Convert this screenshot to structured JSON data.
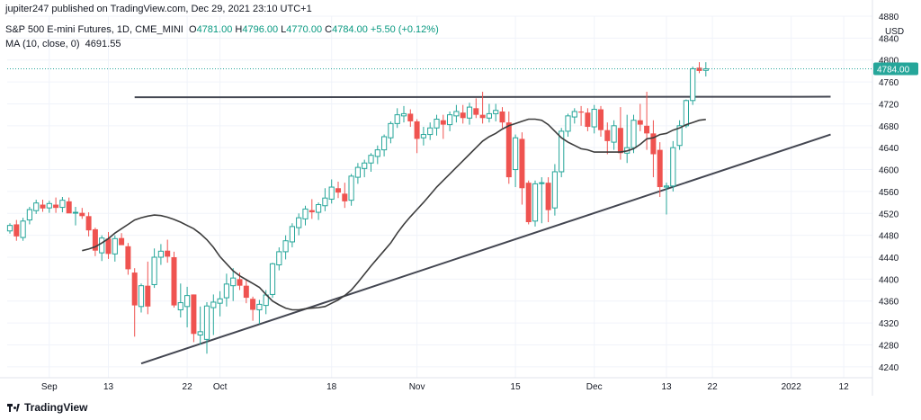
{
  "header": {
    "user_line": "jupiter247 published on TradingView.com, Dec 29, 2021 23:10 UTC+1",
    "symbol": "S&P 500 E-mini Futures, 1D, CME_MINI",
    "o_label": "O",
    "o_value": "4781.00",
    "h_label": "H",
    "h_value": "4796.00",
    "l_label": "L",
    "l_value": "4770.00",
    "c_label": "C",
    "c_value": "4784.00",
    "change": "+5.50 (+0.12%)",
    "ma_label": "MA (10, close, 0)",
    "ma_value": "4691.55"
  },
  "footer": {
    "brand": "TradingView"
  },
  "colors": {
    "up": "#26a69a",
    "down": "#ef5350",
    "ma": "#3d3d3d",
    "trendline": "#434651",
    "price_tag": "#26a69a"
  },
  "chart_data": {
    "type": "candlestick",
    "currency": "USD",
    "ylim": [
      4220,
      4880
    ],
    "y_ticks": [
      4240,
      4280,
      4320,
      4360,
      4400,
      4440,
      4480,
      4520,
      4560,
      4600,
      4640,
      4680,
      4720,
      4760,
      4800,
      4840,
      4880
    ],
    "x_ticks": [
      "Sep",
      "13",
      "22",
      "Oct",
      "18",
      "Nov",
      "15",
      "Dec",
      "13",
      "22",
      "2022",
      "12"
    ],
    "last_price": "4784.00",
    "ma_period": 10,
    "candles": [
      {
        "o": 4488,
        "h": 4502,
        "l": 4483,
        "c": 4498
      },
      {
        "o": 4500,
        "h": 4508,
        "l": 4470,
        "c": 4478
      },
      {
        "o": 4476,
        "h": 4512,
        "l": 4470,
        "c": 4506
      },
      {
        "o": 4508,
        "h": 4532,
        "l": 4500,
        "c": 4527
      },
      {
        "o": 4525,
        "h": 4545,
        "l": 4519,
        "c": 4539
      },
      {
        "o": 4536,
        "h": 4545,
        "l": 4523,
        "c": 4529
      },
      {
        "o": 4530,
        "h": 4543,
        "l": 4521,
        "c": 4538
      },
      {
        "o": 4536,
        "h": 4549,
        "l": 4521,
        "c": 4530
      },
      {
        "o": 4531,
        "h": 4550,
        "l": 4522,
        "c": 4544
      },
      {
        "o": 4542,
        "h": 4549,
        "l": 4521,
        "c": 4520
      },
      {
        "o": 4521,
        "h": 4532,
        "l": 4498,
        "c": 4522
      },
      {
        "o": 4521,
        "h": 4530,
        "l": 4510,
        "c": 4515
      },
      {
        "o": 4515,
        "h": 4522,
        "l": 4478,
        "c": 4489
      },
      {
        "o": 4491,
        "h": 4494,
        "l": 4442,
        "c": 4452
      },
      {
        "o": 4448,
        "h": 4480,
        "l": 4433,
        "c": 4475
      },
      {
        "o": 4474,
        "h": 4486,
        "l": 4437,
        "c": 4446
      },
      {
        "o": 4446,
        "h": 4480,
        "l": 4432,
        "c": 4474
      },
      {
        "o": 4475,
        "h": 4484,
        "l": 4468,
        "c": 4462
      },
      {
        "o": 4460,
        "h": 4466,
        "l": 4408,
        "c": 4418
      },
      {
        "o": 4412,
        "h": 4420,
        "l": 4295,
        "c": 4352
      },
      {
        "o": 4350,
        "h": 4392,
        "l": 4339,
        "c": 4388
      },
      {
        "o": 4388,
        "h": 4432,
        "l": 4336,
        "c": 4350
      },
      {
        "o": 4390,
        "h": 4456,
        "l": 4384,
        "c": 4440
      },
      {
        "o": 4440,
        "h": 4464,
        "l": 4426,
        "c": 4451
      },
      {
        "o": 4452,
        "h": 4472,
        "l": 4430,
        "c": 4441
      },
      {
        "o": 4440,
        "h": 4450,
        "l": 4348,
        "c": 4352
      },
      {
        "o": 4344,
        "h": 4392,
        "l": 4330,
        "c": 4357
      },
      {
        "o": 4350,
        "h": 4386,
        "l": 4312,
        "c": 4370
      },
      {
        "o": 4372,
        "h": 4372,
        "l": 4285,
        "c": 4300
      },
      {
        "o": 4298,
        "h": 4350,
        "l": 4280,
        "c": 4304
      },
      {
        "o": 4290,
        "h": 4358,
        "l": 4264,
        "c": 4351
      },
      {
        "o": 4348,
        "h": 4372,
        "l": 4298,
        "c": 4358
      },
      {
        "o": 4356,
        "h": 4378,
        "l": 4332,
        "c": 4364
      },
      {
        "o": 4366,
        "h": 4410,
        "l": 4350,
        "c": 4391
      },
      {
        "o": 4388,
        "h": 4420,
        "l": 4360,
        "c": 4402
      },
      {
        "o": 4400,
        "h": 4412,
        "l": 4380,
        "c": 4388
      },
      {
        "o": 4388,
        "h": 4400,
        "l": 4356,
        "c": 4366
      },
      {
        "o": 4364,
        "h": 4368,
        "l": 4324,
        "c": 4344
      },
      {
        "o": 4344,
        "h": 4362,
        "l": 4318,
        "c": 4354
      },
      {
        "o": 4352,
        "h": 4380,
        "l": 4336,
        "c": 4371
      },
      {
        "o": 4372,
        "h": 4430,
        "l": 4366,
        "c": 4428
      },
      {
        "o": 4426,
        "h": 4458,
        "l": 4416,
        "c": 4450
      },
      {
        "o": 4450,
        "h": 4480,
        "l": 4436,
        "c": 4470
      },
      {
        "o": 4468,
        "h": 4502,
        "l": 4458,
        "c": 4496
      },
      {
        "o": 4494,
        "h": 4520,
        "l": 4480,
        "c": 4512
      },
      {
        "o": 4510,
        "h": 4534,
        "l": 4498,
        "c": 4528
      },
      {
        "o": 4526,
        "h": 4546,
        "l": 4510,
        "c": 4522
      },
      {
        "o": 4522,
        "h": 4540,
        "l": 4508,
        "c": 4536
      },
      {
        "o": 4534,
        "h": 4566,
        "l": 4524,
        "c": 4548
      },
      {
        "o": 4546,
        "h": 4582,
        "l": 4538,
        "c": 4568
      },
      {
        "o": 4566,
        "h": 4578,
        "l": 4548,
        "c": 4558
      },
      {
        "o": 4556,
        "h": 4576,
        "l": 4530,
        "c": 4542
      },
      {
        "o": 4544,
        "h": 4592,
        "l": 4534,
        "c": 4588
      },
      {
        "o": 4586,
        "h": 4612,
        "l": 4574,
        "c": 4604
      },
      {
        "o": 4602,
        "h": 4618,
        "l": 4586,
        "c": 4612
      },
      {
        "o": 4612,
        "h": 4630,
        "l": 4596,
        "c": 4626
      },
      {
        "o": 4624,
        "h": 4644,
        "l": 4610,
        "c": 4636
      },
      {
        "o": 4636,
        "h": 4664,
        "l": 4624,
        "c": 4660
      },
      {
        "o": 4658,
        "h": 4688,
        "l": 4648,
        "c": 4684
      },
      {
        "o": 4684,
        "h": 4712,
        "l": 4676,
        "c": 4700
      },
      {
        "o": 4698,
        "h": 4716,
        "l": 4686,
        "c": 4702
      },
      {
        "o": 4702,
        "h": 4710,
        "l": 4678,
        "c": 4688
      },
      {
        "o": 4688,
        "h": 4692,
        "l": 4630,
        "c": 4656
      },
      {
        "o": 4658,
        "h": 4678,
        "l": 4644,
        "c": 4664
      },
      {
        "o": 4664,
        "h": 4686,
        "l": 4654,
        "c": 4676
      },
      {
        "o": 4676,
        "h": 4700,
        "l": 4662,
        "c": 4692
      },
      {
        "o": 4690,
        "h": 4700,
        "l": 4656,
        "c": 4682
      },
      {
        "o": 4682,
        "h": 4706,
        "l": 4670,
        "c": 4700
      },
      {
        "o": 4698,
        "h": 4718,
        "l": 4686,
        "c": 4706
      },
      {
        "o": 4704,
        "h": 4718,
        "l": 4684,
        "c": 4694
      },
      {
        "o": 4694,
        "h": 4722,
        "l": 4682,
        "c": 4714
      },
      {
        "o": 4712,
        "h": 4730,
        "l": 4694,
        "c": 4700
      },
      {
        "o": 4700,
        "h": 4742,
        "l": 4684,
        "c": 4694
      },
      {
        "o": 4694,
        "h": 4720,
        "l": 4686,
        "c": 4702
      },
      {
        "o": 4702,
        "h": 4720,
        "l": 4688,
        "c": 4708
      },
      {
        "o": 4706,
        "h": 4714,
        "l": 4676,
        "c": 4686
      },
      {
        "o": 4686,
        "h": 4706,
        "l": 4574,
        "c": 4586
      },
      {
        "o": 4600,
        "h": 4664,
        "l": 4568,
        "c": 4658
      },
      {
        "o": 4656,
        "h": 4668,
        "l": 4536,
        "c": 4566
      },
      {
        "o": 4576,
        "h": 4580,
        "l": 4500,
        "c": 4504
      },
      {
        "o": 4506,
        "h": 4580,
        "l": 4496,
        "c": 4574
      },
      {
        "o": 4576,
        "h": 4586,
        "l": 4502,
        "c": 4576
      },
      {
        "o": 4576,
        "h": 4586,
        "l": 4504,
        "c": 4526
      },
      {
        "o": 4530,
        "h": 4610,
        "l": 4516,
        "c": 4596
      },
      {
        "o": 4596,
        "h": 4676,
        "l": 4586,
        "c": 4670
      },
      {
        "o": 4670,
        "h": 4702,
        "l": 4660,
        "c": 4698
      },
      {
        "o": 4696,
        "h": 4712,
        "l": 4684,
        "c": 4706
      },
      {
        "o": 4706,
        "h": 4716,
        "l": 4680,
        "c": 4704
      },
      {
        "o": 4704,
        "h": 4712,
        "l": 4670,
        "c": 4678
      },
      {
        "o": 4678,
        "h": 4718,
        "l": 4666,
        "c": 4710
      },
      {
        "o": 4710,
        "h": 4716,
        "l": 4660,
        "c": 4672
      },
      {
        "o": 4672,
        "h": 4686,
        "l": 4628,
        "c": 4652
      },
      {
        "o": 4650,
        "h": 4690,
        "l": 4636,
        "c": 4680
      },
      {
        "o": 4676,
        "h": 4714,
        "l": 4618,
        "c": 4630
      },
      {
        "o": 4630,
        "h": 4700,
        "l": 4612,
        "c": 4640
      },
      {
        "o": 4640,
        "h": 4700,
        "l": 4630,
        "c": 4690
      },
      {
        "o": 4690,
        "h": 4720,
        "l": 4670,
        "c": 4682
      },
      {
        "o": 4680,
        "h": 4742,
        "l": 4636,
        "c": 4666
      },
      {
        "o": 4666,
        "h": 4690,
        "l": 4586,
        "c": 4628
      },
      {
        "o": 4636,
        "h": 4650,
        "l": 4550,
        "c": 4568
      },
      {
        "o": 4568,
        "h": 4576,
        "l": 4518,
        "c": 4570
      },
      {
        "o": 4570,
        "h": 4652,
        "l": 4560,
        "c": 4640
      },
      {
        "o": 4644,
        "h": 4690,
        "l": 4636,
        "c": 4680
      },
      {
        "o": 4680,
        "h": 4728,
        "l": 4676,
        "c": 4726
      },
      {
        "o": 4726,
        "h": 4788,
        "l": 4718,
        "c": 4784
      },
      {
        "o": 4786,
        "h": 4796,
        "l": 4776,
        "c": 4780
      },
      {
        "o": 4781,
        "h": 4796,
        "l": 4770,
        "c": 4784
      }
    ],
    "ma": [
      4452,
      4455,
      4459,
      4466,
      4474,
      4484,
      4492,
      4500,
      4508,
      4512,
      4515,
      4517,
      4516,
      4513,
      4509,
      4504,
      4498,
      4492,
      4483,
      4472,
      4458,
      4441,
      4428,
      4415,
      4406,
      4399,
      4392,
      4385,
      4372,
      4360,
      4353,
      4347,
      4344,
      4344,
      4346,
      4347,
      4348,
      4350,
      4356,
      4362,
      4370,
      4380,
      4394,
      4409,
      4424,
      4438,
      4452,
      4466,
      4484,
      4500,
      4514,
      4527,
      4540,
      4554,
      4568,
      4580,
      4592,
      4604,
      4616,
      4628,
      4640,
      4652,
      4660,
      4666,
      4674,
      4680,
      4684,
      4688,
      4692,
      4692,
      4690,
      4682,
      4670,
      4658,
      4650,
      4644,
      4638,
      4636,
      4632,
      4632,
      4632,
      4632,
      4632,
      4634,
      4638,
      4646,
      4656,
      4658,
      4664,
      4666,
      4672,
      4676,
      4682,
      4686,
      4690,
      4691.55
    ],
    "lines": [
      {
        "name": "resistance",
        "from": {
          "index": 19,
          "y": 4732
        },
        "to": {
          "index": 125,
          "y": 4733
        }
      },
      {
        "name": "support",
        "from": {
          "index": 20,
          "y": 4246
        },
        "to": {
          "index": 125,
          "y": 4664
        }
      }
    ]
  }
}
